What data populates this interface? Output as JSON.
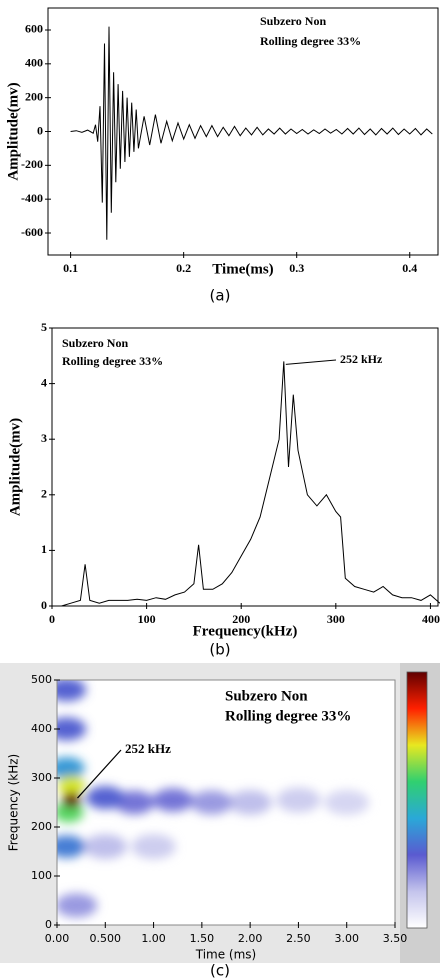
{
  "chart_data": [
    {
      "type": "line",
      "x_label": "Time(ms)",
      "y_label": "Amplitude(mv)",
      "caption": "(a)",
      "annotations": [
        "Subzero Non",
        "Rolling degree 33%"
      ],
      "color": "#000000",
      "xlim": [
        0.08,
        0.425
      ],
      "ylim": [
        -730,
        730
      ],
      "xticks": [
        0.1,
        0.2,
        0.3,
        0.4
      ],
      "yticks": [
        -600,
        -400,
        -200,
        0,
        200,
        400,
        600
      ],
      "x": [
        0.1,
        0.105,
        0.11,
        0.115,
        0.12,
        0.122,
        0.124,
        0.126,
        0.128,
        0.13,
        0.132,
        0.134,
        0.136,
        0.138,
        0.14,
        0.142,
        0.144,
        0.146,
        0.148,
        0.15,
        0.152,
        0.154,
        0.156,
        0.158,
        0.16,
        0.165,
        0.17,
        0.175,
        0.18,
        0.185,
        0.19,
        0.195,
        0.2,
        0.205,
        0.21,
        0.215,
        0.22,
        0.225,
        0.23,
        0.235,
        0.24,
        0.245,
        0.25,
        0.255,
        0.26,
        0.265,
        0.27,
        0.275,
        0.28,
        0.285,
        0.29,
        0.295,
        0.3,
        0.305,
        0.31,
        0.315,
        0.32,
        0.325,
        0.33,
        0.335,
        0.34,
        0.345,
        0.35,
        0.355,
        0.36,
        0.365,
        0.37,
        0.375,
        0.38,
        0.385,
        0.39,
        0.395,
        0.4,
        0.405,
        0.41,
        0.415,
        0.42
      ],
      "values": [
        0,
        5,
        -5,
        8,
        -10,
        40,
        -60,
        150,
        -420,
        520,
        -640,
        620,
        -480,
        350,
        -300,
        280,
        -220,
        240,
        -180,
        200,
        -150,
        170,
        -120,
        130,
        -100,
        90,
        -80,
        100,
        -70,
        60,
        -55,
        50,
        -45,
        40,
        -40,
        35,
        -30,
        35,
        -30,
        25,
        -25,
        30,
        -25,
        20,
        -20,
        25,
        -20,
        15,
        -15,
        20,
        -15,
        15,
        -12,
        12,
        -15,
        10,
        -12,
        15,
        -10,
        12,
        -15,
        18,
        -15,
        20,
        -18,
        15,
        -20,
        18,
        -15,
        20,
        -18,
        15,
        -15,
        18,
        -20,
        15,
        -15
      ]
    },
    {
      "type": "line",
      "x_label": "Frequency(kHz)",
      "y_label": "Amplitude(mv)",
      "caption": "(b)",
      "annotations": [
        "Subzero Non",
        "Rolling degree 33%"
      ],
      "peak_label": "252 kHz",
      "color": "#000000",
      "xlim": [
        0,
        408
      ],
      "ylim": [
        0,
        5
      ],
      "xticks": [
        0,
        100,
        200,
        300,
        400
      ],
      "yticks": [
        0,
        1,
        2,
        3,
        4,
        5
      ],
      "x": [
        10,
        20,
        30,
        35,
        40,
        50,
        60,
        70,
        80,
        90,
        100,
        110,
        120,
        130,
        140,
        150,
        155,
        160,
        170,
        180,
        190,
        200,
        210,
        220,
        230,
        240,
        245,
        250,
        255,
        260,
        270,
        280,
        290,
        300,
        305,
        310,
        320,
        330,
        340,
        350,
        360,
        370,
        380,
        390,
        400,
        410
      ],
      "values": [
        0,
        0.05,
        0.1,
        0.75,
        0.1,
        0.05,
        0.1,
        0.1,
        0.1,
        0.12,
        0.1,
        0.15,
        0.12,
        0.2,
        0.25,
        0.4,
        1.1,
        0.3,
        0.3,
        0.4,
        0.6,
        0.9,
        1.2,
        1.6,
        2.3,
        3.0,
        4.4,
        2.5,
        3.8,
        2.8,
        2.0,
        1.8,
        2.0,
        1.7,
        1.6,
        0.5,
        0.35,
        0.3,
        0.25,
        0.35,
        0.2,
        0.15,
        0.15,
        0.1,
        0.2,
        0.05
      ]
    },
    {
      "type": "spectrogram",
      "x_label": "Time (ms)",
      "y_label": "Frequency (kHz)",
      "caption": "(c)",
      "annotations": [
        "Subzero Non",
        "Rolling degree 33%"
      ],
      "peak_label": "252 kHz",
      "colormap": [
        "#ffffff",
        "#c4c4ec",
        "#5a5ad0",
        "#2aa8d8",
        "#30d070",
        "#e8e820",
        "#ff2000",
        "#600000"
      ],
      "xlim": [
        0,
        3.5
      ],
      "ylim": [
        0,
        500
      ],
      "xticks": [
        {
          "value": 0,
          "label": "0.00"
        },
        {
          "value": 0.5,
          "label": "0.500"
        },
        {
          "value": 1,
          "label": "1.00"
        },
        {
          "value": 1.5,
          "label": "1.50"
        },
        {
          "value": 2,
          "label": "2.00"
        },
        {
          "value": 2.5,
          "label": "2.50"
        },
        {
          "value": 3,
          "label": "3.00"
        },
        {
          "value": 3.5,
          "label": "3.50"
        }
      ],
      "yticks": [
        0,
        100,
        200,
        300,
        400,
        500
      ],
      "time": [
        3.0,
        2.5,
        0.2,
        1.0,
        2.0,
        0.5,
        1.6,
        1.2,
        0.8,
        0.5,
        0.1,
        0.1,
        0.1,
        0.1,
        0.12,
        0.15,
        0.15
      ],
      "frequency": [
        250,
        255,
        40,
        160,
        250,
        160,
        250,
        255,
        250,
        260,
        480,
        400,
        160,
        320,
        230,
        285,
        255
      ],
      "intensity": [
        0.1,
        0.12,
        0.2,
        0.12,
        0.15,
        0.15,
        0.2,
        0.25,
        0.25,
        0.3,
        0.3,
        0.3,
        0.35,
        0.4,
        0.6,
        0.7,
        1.0
      ]
    }
  ]
}
